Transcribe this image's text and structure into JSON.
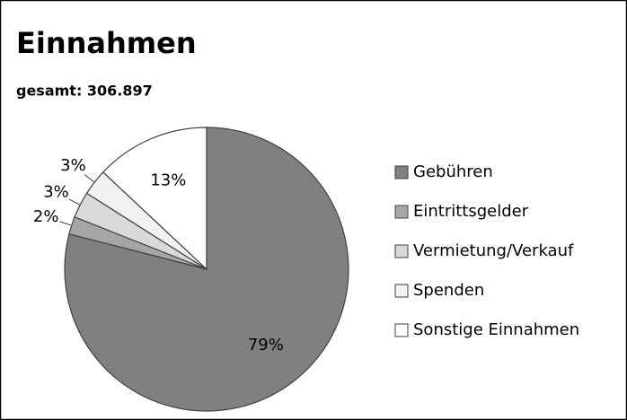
{
  "chart_data": {
    "type": "pie",
    "title": "Einnahmen",
    "subtitle": "gesamt: 306.897",
    "categories": [
      "Gebühren",
      "Eintrittsgelder",
      "Vermietung/Verkauf",
      "Spenden",
      "Sonstige Einnahmen"
    ],
    "values": [
      79,
      2,
      3,
      3,
      13
    ],
    "value_labels": [
      "79%",
      "2%",
      "3%",
      "3%",
      "13%"
    ],
    "colors": [
      "#808080",
      "#a6a6a6",
      "#d9d9d9",
      "#f2f2f2",
      "#ffffff"
    ],
    "legend": "right"
  }
}
